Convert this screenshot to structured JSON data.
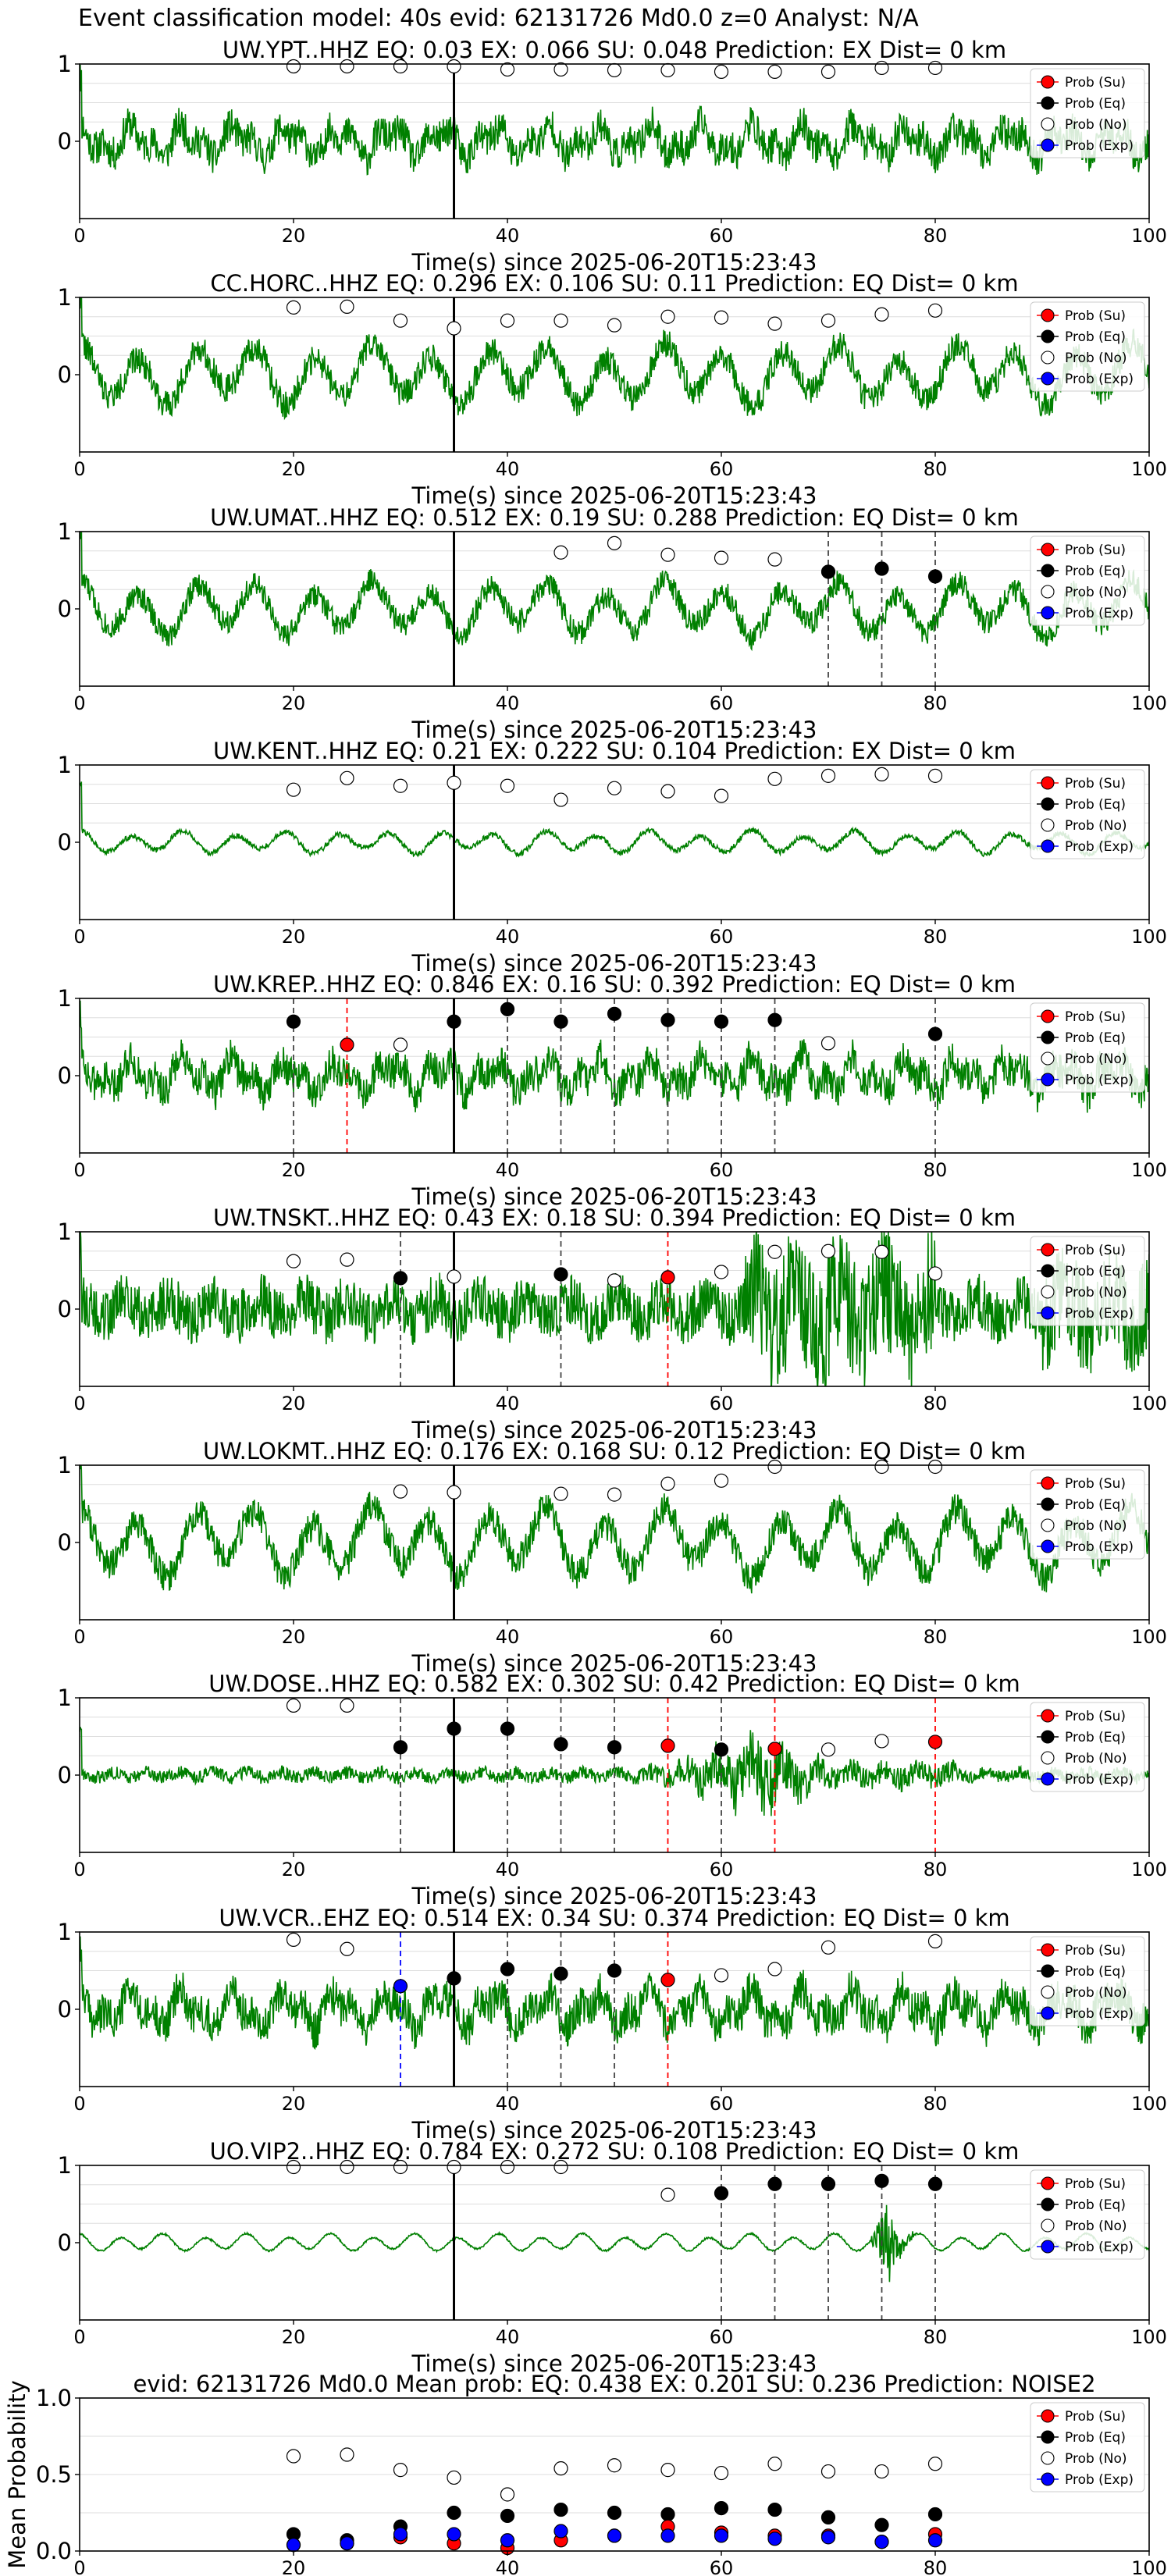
{
  "suptitle": "Event classification model: 40s evid: 62131726 Md0.0 z=0 Analyst: N/A",
  "legend": [
    "Prob (Su)",
    "Prob (Eq)",
    "Prob (No)",
    "Prob (Exp)"
  ],
  "colors": {
    "su": "#ff0000",
    "eq": "#000000",
    "no": "#ffffff",
    "exp": "#0000ff",
    "trace": "#008000"
  },
  "xlabel": "Time(s) since 2025-06-20T15:23:43",
  "chart_data": [
    {
      "type": "line",
      "title": "UW.YPT..HHZ   EQ: 0.03   EX: 0.066   SU: 0.048    Prediction: EX    Dist= 0 km",
      "xlim": [
        0,
        100
      ],
      "ylim": [
        -1,
        1
      ],
      "xticks": [
        "0",
        "20",
        "40",
        "60",
        "80",
        "100"
      ],
      "yticks": [
        "1",
        "0"
      ],
      "style": "noise",
      "amp": 0.28,
      "seed": 11,
      "pick_line": 35,
      "x": [
        20,
        25,
        30,
        35,
        40,
        45,
        50,
        55,
        60,
        65,
        70,
        75,
        80
      ],
      "no": [
        0.97,
        0.97,
        0.97,
        0.97,
        0.93,
        0.93,
        0.92,
        0.92,
        0.9,
        0.9,
        0.9,
        0.95,
        0.95
      ],
      "eq": [],
      "su": [],
      "exp": [],
      "dashed": []
    },
    {
      "type": "line",
      "title": "CC.HORC..HHZ   EQ: 0.296   EX: 0.106   SU: 0.11    Prediction: EQ    Dist= 0 km",
      "xlim": [
        0,
        100
      ],
      "ylim": [
        -1,
        1
      ],
      "xticks": [
        "0",
        "20",
        "40",
        "60",
        "80",
        "100"
      ],
      "yticks": [
        "1",
        "0"
      ],
      "style": "wave",
      "amp": 0.4,
      "seed": 22,
      "pick_line": 35,
      "x": [
        20,
        25,
        30,
        35,
        40,
        45,
        50,
        55,
        60,
        65,
        70,
        75,
        80
      ],
      "no": [
        0.87,
        0.88,
        0.7,
        0.6,
        0.7,
        0.7,
        0.64,
        0.75,
        0.74,
        0.66,
        0.7,
        0.78,
        0.83
      ],
      "eq": [],
      "su": [],
      "exp": [],
      "dashed": []
    },
    {
      "type": "line",
      "title": "UW.UMAT..HHZ   EQ: 0.512   EX: 0.19   SU: 0.288    Prediction: EQ    Dist= 0 km",
      "xlim": [
        0,
        100
      ],
      "ylim": [
        -1,
        1
      ],
      "xticks": [
        "0",
        "20",
        "40",
        "60",
        "80",
        "100"
      ],
      "yticks": [
        "1",
        "0"
      ],
      "style": "wave",
      "amp": 0.35,
      "seed": 33,
      "pick_line": 35,
      "x": [
        45,
        50,
        55,
        60,
        65,
        70,
        75,
        80
      ],
      "no": [
        0.73,
        0.85,
        0.7,
        0.66,
        0.64,
        null,
        null,
        null
      ],
      "eq": [
        null,
        null,
        null,
        null,
        null,
        0.48,
        0.52,
        0.42
      ],
      "su": [],
      "exp": [],
      "dashed": [
        {
          "x": 70,
          "c": "eq"
        },
        {
          "x": 75,
          "c": "eq"
        },
        {
          "x": 80,
          "c": "eq"
        }
      ]
    },
    {
      "type": "line",
      "title": "UW.KENT..HHZ   EQ: 0.21   EX: 0.222   SU: 0.104    Prediction: EX    Dist= 0 km",
      "xlim": [
        0,
        100
      ],
      "ylim": [
        -1,
        1
      ],
      "xticks": [
        "0",
        "20",
        "40",
        "60",
        "80",
        "100"
      ],
      "yticks": [
        "1",
        "0"
      ],
      "style": "calm",
      "amp": 0.14,
      "seed": 44,
      "pick_line": 35,
      "x": [
        20,
        25,
        30,
        35,
        40,
        45,
        50,
        55,
        60,
        65,
        70,
        75,
        80
      ],
      "no": [
        0.68,
        0.83,
        0.73,
        0.77,
        0.73,
        0.55,
        0.7,
        0.66,
        0.6,
        0.82,
        0.86,
        0.88,
        0.86
      ],
      "eq": [],
      "su": [],
      "exp": [],
      "dashed": []
    },
    {
      "type": "line",
      "title": "UW.KREP..HHZ   EQ: 0.846   EX: 0.16   SU: 0.392    Prediction: EQ    Dist= 0 km",
      "xlim": [
        0,
        100
      ],
      "ylim": [
        -1,
        1
      ],
      "xticks": [
        "0",
        "20",
        "40",
        "60",
        "80",
        "100"
      ],
      "yticks": [
        "1",
        "0"
      ],
      "style": "noise",
      "amp": 0.3,
      "seed": 55,
      "pick_line": 35,
      "x": [
        20,
        25,
        30,
        35,
        40,
        45,
        50,
        55,
        60,
        65,
        70,
        80
      ],
      "no": [
        null,
        null,
        0.4,
        null,
        null,
        null,
        null,
        null,
        null,
        null,
        0.42,
        null
      ],
      "eq": [
        0.7,
        null,
        null,
        0.7,
        0.86,
        0.7,
        0.8,
        0.72,
        0.7,
        0.72,
        null,
        0.54
      ],
      "su": [
        null,
        0.4,
        null,
        null,
        null,
        null,
        null,
        null,
        null,
        null,
        null,
        null
      ],
      "exp": [],
      "dashed": [
        {
          "x": 20,
          "c": "eq"
        },
        {
          "x": 25,
          "c": "su"
        },
        {
          "x": 40,
          "c": "eq"
        },
        {
          "x": 45,
          "c": "eq"
        },
        {
          "x": 50,
          "c": "eq"
        },
        {
          "x": 55,
          "c": "eq"
        },
        {
          "x": 60,
          "c": "eq"
        },
        {
          "x": 65,
          "c": "eq"
        },
        {
          "x": 80,
          "c": "eq"
        }
      ]
    },
    {
      "type": "line",
      "title": "UW.TNSKT..HHZ   EQ: 0.43   EX: 0.18   SU: 0.394    Prediction: EQ    Dist= 0 km",
      "xlim": [
        0,
        100
      ],
      "ylim": [
        -1,
        1
      ],
      "xticks": [
        "0",
        "20",
        "40",
        "60",
        "80",
        "100"
      ],
      "yticks": [
        "1",
        "0"
      ],
      "style": "dense",
      "amp": 0.5,
      "seed": 66,
      "pick_line": 35,
      "x": [
        20,
        25,
        30,
        35,
        45,
        50,
        55,
        60,
        65,
        70,
        75,
        80
      ],
      "no": [
        0.62,
        0.64,
        null,
        0.42,
        null,
        0.37,
        null,
        0.48,
        0.74,
        0.75,
        0.74,
        0.46
      ],
      "eq": [
        null,
        null,
        0.4,
        null,
        0.45,
        null,
        null,
        null,
        null,
        null,
        null,
        null
      ],
      "su": [
        null,
        null,
        null,
        null,
        null,
        null,
        0.41,
        null,
        null,
        null,
        null,
        null
      ],
      "exp": [],
      "dashed": [
        {
          "x": 30,
          "c": "eq"
        },
        {
          "x": 45,
          "c": "eq"
        },
        {
          "x": 55,
          "c": "su"
        }
      ]
    },
    {
      "type": "line",
      "title": "UW.LOKMT..HHZ   EQ: 0.176   EX: 0.168   SU: 0.12    Prediction: EQ    Dist= 0 km",
      "xlim": [
        0,
        100
      ],
      "ylim": [
        -1,
        1
      ],
      "xticks": [
        "0",
        "20",
        "40",
        "60",
        "80",
        "100"
      ],
      "yticks": [
        "1",
        "0"
      ],
      "style": "wave",
      "amp": 0.45,
      "seed": 77,
      "pick_line": 35,
      "x": [
        20,
        25,
        30,
        35,
        45,
        50,
        55,
        60,
        65,
        75,
        80
      ],
      "no": [
        null,
        null,
        0.66,
        0.65,
        0.63,
        0.62,
        0.76,
        0.8,
        0.98,
        0.98,
        0.98
      ],
      "eq": [],
      "su": [],
      "exp": [],
      "dashed": []
    },
    {
      "type": "line",
      "title": "UW.DOSE..HHZ   EQ: 0.582   EX: 0.302   SU: 0.42    Prediction: EQ    Dist= 0 km",
      "xlim": [
        0,
        100
      ],
      "ylim": [
        -1,
        1
      ],
      "xticks": [
        "0",
        "20",
        "40",
        "60",
        "80",
        "100"
      ],
      "yticks": [
        "1",
        "0"
      ],
      "style": "quiet-burst",
      "amp": 0.12,
      "seed": 88,
      "pick_line": 35,
      "x": [
        20,
        25,
        30,
        35,
        40,
        45,
        50,
        55,
        60,
        65,
        70,
        75,
        80
      ],
      "no": [
        0.9,
        0.9,
        null,
        null,
        null,
        null,
        null,
        null,
        null,
        null,
        0.33,
        0.44,
        null
      ],
      "eq": [
        null,
        null,
        0.36,
        0.6,
        0.6,
        0.4,
        0.36,
        null,
        0.33,
        null,
        null,
        null,
        null
      ],
      "su": [
        null,
        null,
        null,
        null,
        null,
        null,
        null,
        0.38,
        null,
        0.34,
        null,
        null,
        0.43
      ],
      "exp": [],
      "dashed": [
        {
          "x": 30,
          "c": "eq"
        },
        {
          "x": 40,
          "c": "eq"
        },
        {
          "x": 45,
          "c": "eq"
        },
        {
          "x": 50,
          "c": "eq"
        },
        {
          "x": 55,
          "c": "su"
        },
        {
          "x": 60,
          "c": "eq"
        },
        {
          "x": 65,
          "c": "su"
        },
        {
          "x": 80,
          "c": "su"
        }
      ]
    },
    {
      "type": "line",
      "title": "UW.VCR..EHZ   EQ: 0.514   EX: 0.34   SU: 0.374    Prediction: EQ    Dist= 0 km",
      "xlim": [
        0,
        100
      ],
      "ylim": [
        -1,
        1
      ],
      "xticks": [
        "0",
        "20",
        "40",
        "60",
        "80",
        "100"
      ],
      "yticks": [
        "1",
        "0"
      ],
      "style": "noise",
      "amp": 0.32,
      "seed": 99,
      "pick_line": 35,
      "x": [
        20,
        25,
        30,
        35,
        40,
        45,
        50,
        55,
        60,
        65,
        70,
        80
      ],
      "no": [
        0.9,
        0.78,
        null,
        null,
        null,
        null,
        null,
        null,
        0.44,
        0.52,
        0.8,
        0.88
      ],
      "eq": [
        null,
        null,
        null,
        0.4,
        0.52,
        0.46,
        0.5,
        null,
        null,
        null,
        null,
        null
      ],
      "su": [
        null,
        null,
        null,
        null,
        null,
        null,
        null,
        0.38,
        null,
        null,
        null,
        null
      ],
      "exp": [
        null,
        null,
        0.3,
        null,
        null,
        null,
        null,
        null,
        null,
        null,
        null,
        null
      ],
      "dashed": [
        {
          "x": 30,
          "c": "exp"
        },
        {
          "x": 40,
          "c": "eq"
        },
        {
          "x": 45,
          "c": "eq"
        },
        {
          "x": 50,
          "c": "eq"
        },
        {
          "x": 55,
          "c": "su"
        }
      ]
    },
    {
      "type": "line",
      "title": "UO.VIP2..HHZ   EQ: 0.784   EX: 0.272   SU: 0.108    Prediction: EQ    Dist= 0 km",
      "xlim": [
        0,
        100
      ],
      "ylim": [
        -1,
        1
      ],
      "xticks": [
        "0",
        "20",
        "40",
        "60",
        "80",
        "100"
      ],
      "yticks": [
        "1",
        "0"
      ],
      "style": "calm-burst",
      "amp": 0.1,
      "seed": 111,
      "pick_line": 35,
      "x": [
        20,
        25,
        30,
        35,
        40,
        45,
        55,
        60,
        65,
        70,
        75,
        80
      ],
      "no": [
        0.98,
        0.98,
        0.98,
        0.98,
        0.98,
        0.98,
        0.62,
        null,
        null,
        null,
        null,
        null
      ],
      "eq": [
        null,
        null,
        null,
        null,
        null,
        null,
        null,
        0.64,
        0.76,
        0.76,
        0.8,
        0.76
      ],
      "su": [],
      "exp": [],
      "dashed": [
        {
          "x": 60,
          "c": "eq"
        },
        {
          "x": 65,
          "c": "eq"
        },
        {
          "x": 70,
          "c": "eq"
        },
        {
          "x": 75,
          "c": "eq"
        },
        {
          "x": 80,
          "c": "eq"
        }
      ]
    },
    {
      "type": "scatter",
      "title": "evid: 62131726  Md0.0   Mean prob:   EQ: 0.438   EX: 0.201   SU: 0.236   Prediction: NOISE2",
      "ylabel": "Mean Probability",
      "xlim": [
        0,
        100
      ],
      "ylim": [
        0,
        1
      ],
      "xticks": [
        "0",
        "20",
        "40",
        "60",
        "80",
        "100"
      ],
      "yticks": [
        "1.0",
        "0.5",
        "0.0"
      ],
      "x": [
        20,
        25,
        30,
        35,
        40,
        45,
        50,
        55,
        60,
        65,
        70,
        75,
        80
      ],
      "no": [
        0.62,
        0.63,
        0.53,
        0.48,
        0.37,
        0.54,
        0.56,
        0.53,
        0.51,
        0.57,
        0.52,
        0.52,
        0.57
      ],
      "eq": [
        0.11,
        0.07,
        0.16,
        0.25,
        0.23,
        0.27,
        0.25,
        0.24,
        0.28,
        0.27,
        0.22,
        0.17,
        0.24
      ],
      "su": [
        0.04,
        0.05,
        0.09,
        0.05,
        0.02,
        0.07,
        0.1,
        0.16,
        0.12,
        0.1,
        0.1,
        0.06,
        0.11
      ],
      "exp": [
        0.04,
        0.05,
        0.11,
        0.11,
        0.07,
        0.13,
        0.1,
        0.1,
        0.1,
        0.08,
        0.09,
        0.06,
        0.07
      ]
    }
  ]
}
